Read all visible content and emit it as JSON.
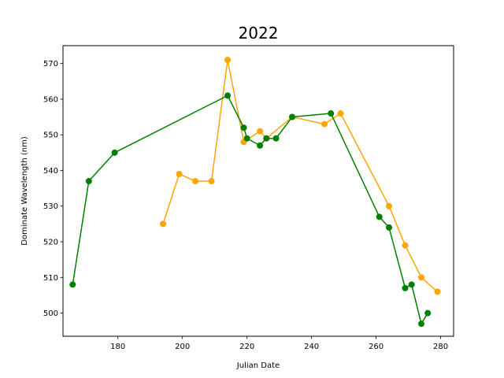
{
  "chart_data": {
    "type": "line",
    "title": "2022",
    "xlabel": "Julian Date",
    "ylabel": "Dominate Wavelength (nm)",
    "xlim": [
      163,
      284
    ],
    "ylim": [
      493.5,
      575
    ],
    "xticks": [
      180,
      200,
      220,
      240,
      260,
      280
    ],
    "yticks": [
      500,
      510,
      520,
      530,
      540,
      550,
      560,
      570
    ],
    "grid": false,
    "series": [
      {
        "color": "#ffa500",
        "x": [
          194,
          199,
          204,
          209,
          214,
          219,
          224,
          226,
          234,
          244,
          249,
          264,
          269,
          274,
          279
        ],
        "y": [
          525,
          539,
          537,
          537,
          571,
          548,
          551,
          549,
          555,
          553,
          556,
          530,
          519,
          510,
          506
        ]
      },
      {
        "color": "#008000",
        "x": [
          166,
          171,
          179,
          214,
          219,
          220,
          224,
          226,
          229,
          234,
          246,
          261,
          264,
          269,
          271,
          274,
          276
        ],
        "y": [
          508,
          537,
          545,
          561,
          552,
          549,
          547,
          549,
          549,
          555,
          556,
          527,
          524,
          507,
          508,
          497,
          500
        ]
      }
    ]
  }
}
